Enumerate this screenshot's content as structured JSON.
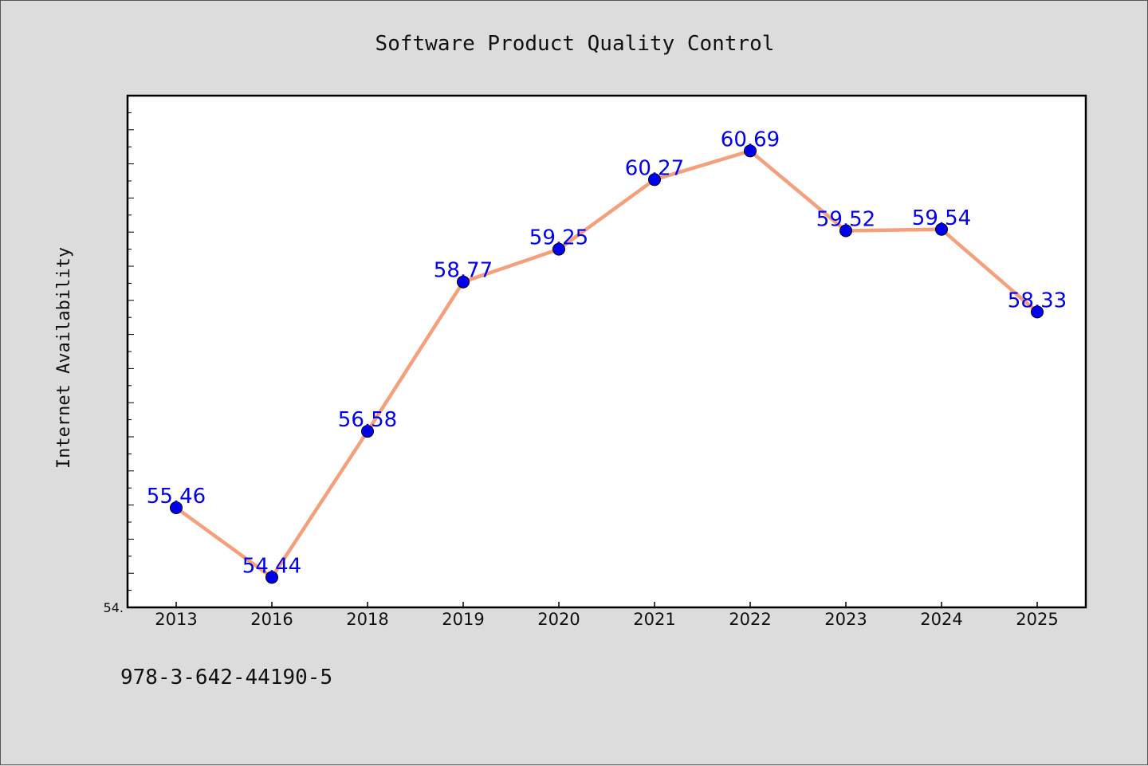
{
  "chart_data": {
    "type": "line",
    "title": "Software Product Quality Control",
    "xlabel": "",
    "ylabel": "Internet Availability",
    "categories": [
      "2013",
      "2016",
      "2018",
      "2019",
      "2020",
      "2021",
      "2022",
      "2023",
      "2024",
      "2025"
    ],
    "series": [
      {
        "values": [
          55.46,
          54.44,
          56.58,
          58.77,
          59.25,
          60.27,
          60.69,
          59.52,
          59.54,
          58.33
        ],
        "labels": [
          "55.46",
          "54.44",
          "56.58",
          "58.77",
          "59.25",
          "60.27",
          "60.69",
          "59.52",
          "59.54",
          "58.33"
        ],
        "line_color": "#f4a07c",
        "marker_color": "#0000ee",
        "label_color": "#0000ee"
      }
    ],
    "ylim": [
      54.0,
      61.5
    ],
    "y_tick_label": "54.",
    "grid": false,
    "legend": "none"
  },
  "footer": {
    "isbn": "978-3-642-44190-5"
  }
}
